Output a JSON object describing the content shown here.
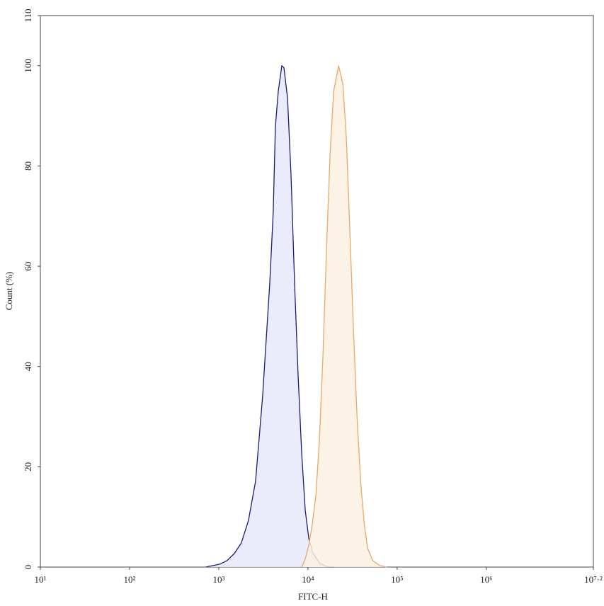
{
  "chart_data": {
    "type": "histogram-overlay",
    "x_label": "FITC-H",
    "y_label": "Count (%)",
    "xlog": true,
    "xlim": [
      10,
      15848932
    ],
    "ylim": [
      0,
      110
    ],
    "xticks": [
      {
        "value": 10,
        "label": "10¹"
      },
      {
        "value": 100,
        "label": "10²"
      },
      {
        "value": 1000,
        "label": "10³"
      },
      {
        "value": 10000,
        "label": "10⁴"
      },
      {
        "value": 100000,
        "label": "10⁵"
      },
      {
        "value": 1000000,
        "label": "10⁶"
      },
      {
        "value": 15848932,
        "label": "10⁷·²"
      }
    ],
    "yticks": [
      0,
      20,
      40,
      60,
      80,
      100,
      110
    ],
    "grid": false,
    "series": [
      {
        "color": "#1c1c7a",
        "fill": "#e6e8fa",
        "x": [
          716,
          861,
          1033,
          1241,
          1493,
          1791,
          2153,
          2585,
          3105,
          3732,
          4085,
          4315,
          4645,
          5093,
          5382,
          5902,
          6470,
          7079,
          7762,
          8511,
          9333,
          10230,
          11194,
          13459,
          16181,
          19409
        ],
        "values": [
          0,
          0.3,
          0.6,
          1.3,
          2.7,
          4.8,
          9.3,
          17.1,
          34.1,
          56.7,
          70.9,
          87.8,
          94.9,
          100,
          99.6,
          93.5,
          77.9,
          56.7,
          38.3,
          22.6,
          11.3,
          5.7,
          3.0,
          0.8,
          0.1,
          0
        ]
      },
      {
        "color": "#e8a868",
        "fill": "#fdf0e2",
        "x": [
          8511,
          9333,
          10230,
          11194,
          12274,
          13459,
          14757,
          16181,
          17703,
          19409,
          22080,
          24660,
          27040,
          29580,
          32430,
          35560,
          38990,
          42750,
          46770,
          53210,
          63970,
          76740
        ],
        "values": [
          0,
          1.6,
          4.4,
          8.6,
          14.3,
          25.6,
          42.6,
          63.8,
          82.2,
          94.9,
          100,
          96.3,
          85.0,
          66.6,
          46.8,
          29.8,
          17.1,
          8.6,
          3.7,
          1.3,
          0.3,
          0
        ]
      }
    ]
  }
}
